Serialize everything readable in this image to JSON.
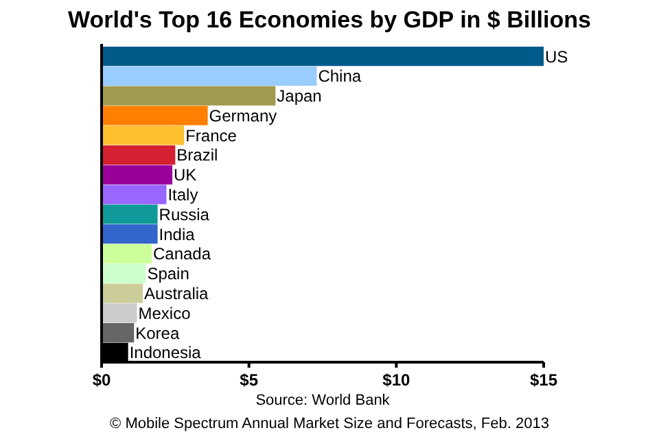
{
  "chart_data": {
    "type": "bar",
    "orientation": "horizontal",
    "title": "World's Top 16 Economies by GDP in $ Billions",
    "categories": [
      "US",
      "China",
      "Japan",
      "Germany",
      "France",
      "Brazil",
      "UK",
      "Italy",
      "Russia",
      "India",
      "Canada",
      "Spain",
      "Australia",
      "Mexico",
      "Korea",
      "Indonesia"
    ],
    "values": [
      15.0,
      7.3,
      5.9,
      3.6,
      2.8,
      2.5,
      2.4,
      2.2,
      1.9,
      1.9,
      1.7,
      1.5,
      1.4,
      1.2,
      1.1,
      0.9
    ],
    "colors": [
      "#005b8a",
      "#99ccff",
      "#a09a50",
      "#ff7f00",
      "#ffc030",
      "#d42030",
      "#990099",
      "#9966ff",
      "#109999",
      "#3366cc",
      "#ccff99",
      "#ccffcc",
      "#cccc99",
      "#cccccc",
      "#666666",
      "#000000"
    ],
    "xlim": [
      0,
      15
    ],
    "xticks": [
      {
        "value": 0,
        "label": "$0"
      },
      {
        "value": 5,
        "label": "$5"
      },
      {
        "value": 10,
        "label": "$10"
      },
      {
        "value": 15,
        "label": "$15"
      }
    ],
    "xlabel": "Source: World Bank",
    "annotations": [
      "© Mobile Spectrum Annual Market Size and Forecasts, Feb. 2013"
    ]
  }
}
